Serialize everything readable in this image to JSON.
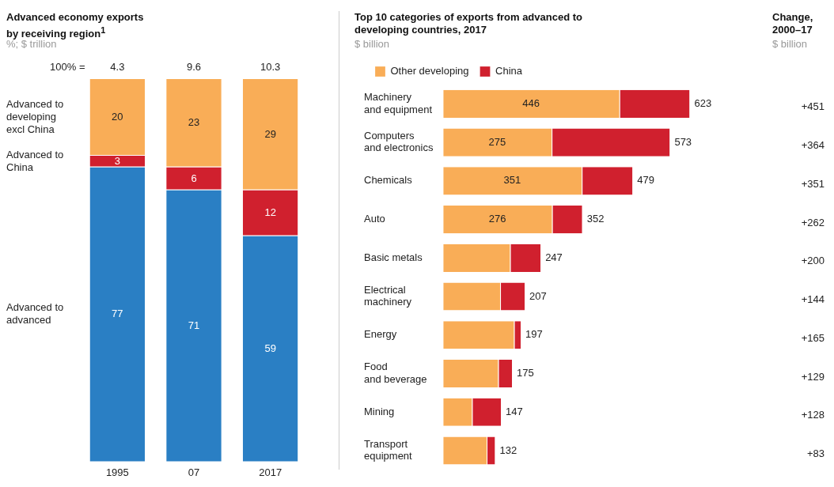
{
  "chart_data": [
    {
      "type": "bar",
      "title": "Advanced economy exports by receiving region$^{1}$",
      "subtitle": "%; $ trillion",
      "categories": [
        "1995",
        "07",
        "2017"
      ],
      "stacked": true,
      "data_labels": true,
      "ylim": [
        0,
        100
      ],
      "tick_labels": "x",
      "annotations": [
        "100% =",
        {
          "text": "4.3",
          "x": "1995",
          "y": 100
        },
        {
          "text": "9.6",
          "x": "07",
          "y": 100
        },
        {
          "text": "10.3",
          "x": "2017",
          "y": 100
        }
      ],
      "series": [
        {
          "name": "Advanced to advanced",
          "color": "#2a7fc4",
          "values": [
            77,
            71,
            59
          ]
        },
        {
          "name": "Advanced to China",
          "color": "#d0202e",
          "values": [
            3,
            6,
            12
          ]
        },
        {
          "name": "Advanced to developing excl China",
          "color": "#f9ad57",
          "values": [
            20,
            23,
            29
          ]
        }
      ]
    },
    {
      "type": "bar",
      "title": "Top 10 categories of exports from advanced to developing countries, 2017",
      "subtitle": "$ billion",
      "orientation": "horizontal",
      "stacked": true,
      "legend": "top left",
      "tick_labels": "y",
      "categories": [
        "Machinery and equipment",
        "Computers and electronics",
        "Chemicals",
        "Auto",
        "Basic metals",
        "Electrical machinery",
        "Energy",
        "Food and beverage",
        "Mining",
        "Transport equipment"
      ],
      "totals": [
        "623",
        "573",
        "479",
        "352",
        "247",
        "207",
        "197",
        "175",
        "147",
        "132"
      ],
      "series": [
        {
          "name": "Other developing",
          "color": "#f9ad57",
          "values": [
            446,
            275,
            351,
            276,
            170,
            145,
            180,
            140,
            74,
            111
          ],
          "value_labels": [
            "446",
            "275",
            "351",
            "276",
            null,
            null,
            null,
            null,
            null,
            null
          ]
        },
        {
          "name": "China",
          "color": "#d0202e",
          "values": [
            177,
            298,
            128,
            76,
            77,
            62,
            17,
            35,
            73,
            21
          ]
        }
      ]
    },
    {
      "type": "other",
      "title": "Change, 2000–17",
      "subtitle": "$ billion",
      "annotations": [
        "+451",
        "+364",
        "+351",
        "+262",
        "+200",
        "+144",
        "+165",
        "+129",
        "+128",
        "+83"
      ]
    }
  ]
}
